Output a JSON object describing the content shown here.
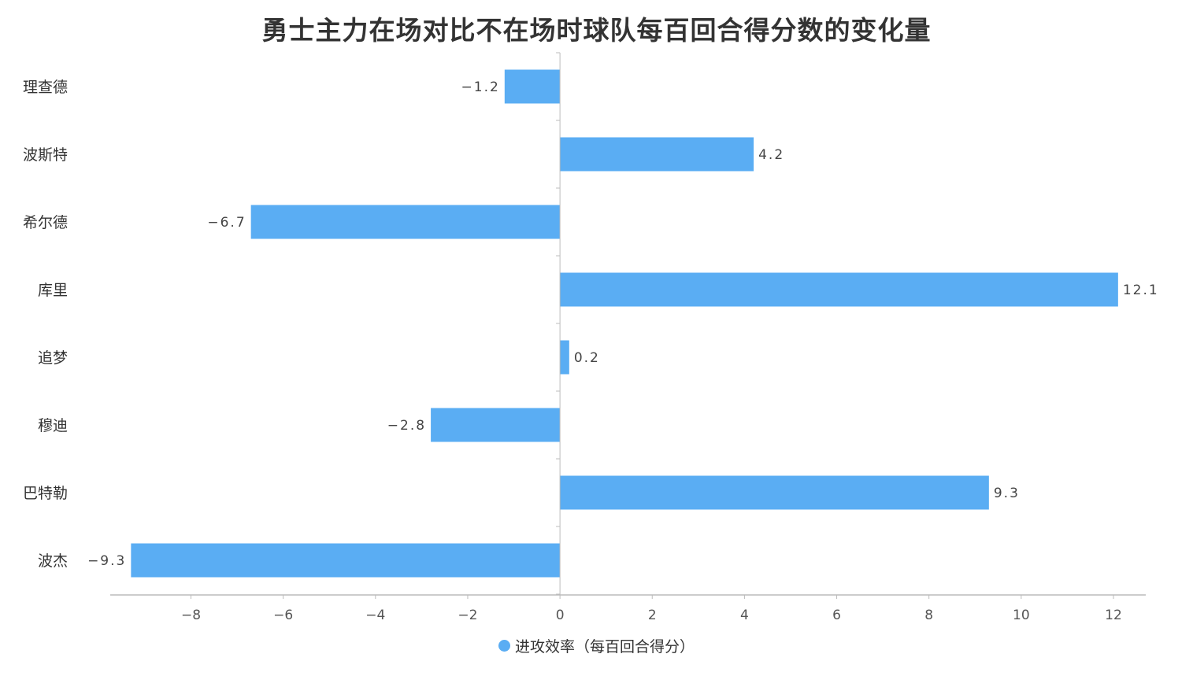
{
  "chart_data": {
    "type": "bar",
    "orientation": "horizontal",
    "title": "勇士主力在场对比不在场时球队每百回合得分数的变化量",
    "categories": [
      "理查德",
      "波斯特",
      "希尔德",
      "库里",
      "追梦",
      "穆迪",
      "巴特勒",
      "波杰"
    ],
    "series": [
      {
        "name": "进攻效率（每百回合得分）",
        "values": [
          -1.2,
          4.2,
          -6.7,
          12.1,
          0.2,
          -2.8,
          9.3,
          -9.3
        ],
        "color": "#5aadf3"
      }
    ],
    "value_labels": [
      "−1.2",
      "4.2",
      "−6.7",
      "12.1",
      "0.2",
      "−2.8",
      "9.3",
      "−9.3"
    ],
    "x_ticks": [
      -8,
      -6,
      -4,
      -2,
      0,
      2,
      4,
      6,
      8,
      10,
      12
    ],
    "x_tick_labels": [
      "−8",
      "−6",
      "−4",
      "−2",
      "0",
      "2",
      "4",
      "6",
      "8",
      "10",
      "12"
    ],
    "xlim": [
      -9.75,
      12.7
    ],
    "grid": false,
    "legend_position": "bottom"
  }
}
